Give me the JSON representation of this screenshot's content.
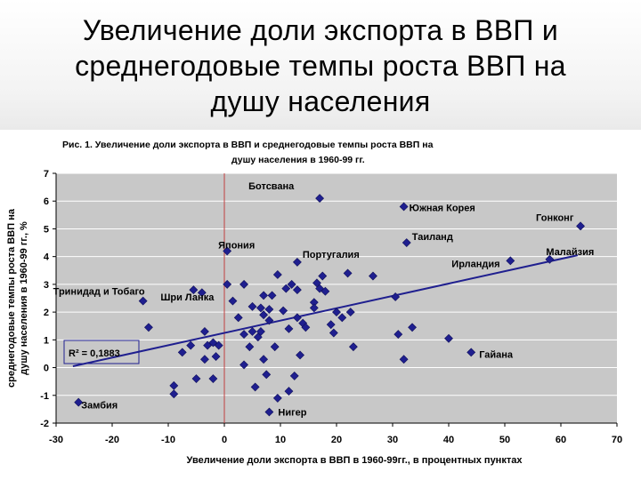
{
  "slide": {
    "title_line1": "Увеличение доли экспорта в ВВП и",
    "title_line2": "среднегодовые темпы роста ВВП на",
    "title_line3": "душу населения"
  },
  "colors": {
    "marker": "#1f1f8f",
    "trend": "#1f1f8f",
    "plot_bg": "#c8c8c8",
    "grid": "#ffffff",
    "zero_line": "#c04040"
  },
  "chart_data": {
    "type": "scatter",
    "figure_caption_line1": "Рис. 1. Увеличение  доли экспорта в ВВП и среднегодовые темпы роста ВВП на",
    "figure_caption_line2": "душу населения в 1960-99 гг.",
    "xlabel": "Увеличение  доли экспорта в ВВП в 1960-99гг., в процентных пунктах",
    "ylabel_line1": "среднегодовые темпы роста ВВП на",
    "ylabel_line2": "душу населения в 1960-99 гг., %",
    "xlim": [
      -30,
      70
    ],
    "ylim": [
      -2,
      7
    ],
    "x_ticks": [
      "-30",
      "-20",
      "-10",
      "0",
      "10",
      "20",
      "30",
      "40",
      "50",
      "60",
      "70"
    ],
    "y_ticks": [
      "-2",
      "-1",
      "0",
      "1",
      "2",
      "3",
      "4",
      "5",
      "6",
      "7"
    ],
    "grid": true,
    "r2_label": "R² = 0,1883",
    "trendline": {
      "x": [
        -27,
        63
      ],
      "y": [
        0.05,
        4.05
      ]
    },
    "labeled_points": [
      {
        "name": "Ботсвана",
        "x": 17,
        "y": 6.1
      },
      {
        "name": "Южная Корея",
        "x": 32,
        "y": 5.8
      },
      {
        "name": "Гонконг",
        "x": 63.5,
        "y": 5.1
      },
      {
        "name": "Таиланд",
        "x": 32.5,
        "y": 4.5
      },
      {
        "name": "Япония",
        "x": 0.5,
        "y": 4.2
      },
      {
        "name": "Португалия",
        "x": 13,
        "y": 3.8
      },
      {
        "name": "Малайзия",
        "x": 58,
        "y": 3.9
      },
      {
        "name": "Ирландия",
        "x": 51,
        "y": 3.85
      },
      {
        "name": "Тринидад и Тобаго",
        "x": -14.5,
        "y": 2.4
      },
      {
        "name": "Шри Ланка",
        "x": -5.5,
        "y": 2.8
      },
      {
        "name": "Гайана",
        "x": 44,
        "y": 0.55
      },
      {
        "name": "Замбия",
        "x": -26,
        "y": -1.25
      },
      {
        "name": "Нигер",
        "x": 8,
        "y": -1.6
      }
    ],
    "points": [
      {
        "x": -13.5,
        "y": 1.45
      },
      {
        "x": -7.5,
        "y": 0.55
      },
      {
        "x": -6,
        "y": 0.8
      },
      {
        "x": -5,
        "y": -0.4
      },
      {
        "x": -4,
        "y": 2.7
      },
      {
        "x": -3.5,
        "y": 1.3
      },
      {
        "x": -3.5,
        "y": 0.3
      },
      {
        "x": -3,
        "y": 0.8
      },
      {
        "x": -2,
        "y": -0.4
      },
      {
        "x": -2,
        "y": 0.9
      },
      {
        "x": -1.5,
        "y": 0.4
      },
      {
        "x": -1,
        "y": 0.8
      },
      {
        "x": -9,
        "y": -0.65
      },
      {
        "x": -9,
        "y": -0.95
      },
      {
        "x": 0.5,
        "y": 3.0
      },
      {
        "x": 1.5,
        "y": 2.4
      },
      {
        "x": 2.5,
        "y": 1.8
      },
      {
        "x": 3.5,
        "y": 1.2
      },
      {
        "x": 3.5,
        "y": 3.0
      },
      {
        "x": 3.5,
        "y": 0.1
      },
      {
        "x": 4.5,
        "y": 0.75
      },
      {
        "x": 5,
        "y": 2.2
      },
      {
        "x": 5,
        "y": 1.3
      },
      {
        "x": 5.5,
        "y": -0.7
      },
      {
        "x": 6,
        "y": 1.1
      },
      {
        "x": 6.5,
        "y": 2.15
      },
      {
        "x": 6.5,
        "y": 1.3
      },
      {
        "x": 7,
        "y": 2.6
      },
      {
        "x": 7,
        "y": 1.9
      },
      {
        "x": 7,
        "y": 0.3
      },
      {
        "x": 7.5,
        "y": -0.25
      },
      {
        "x": 8,
        "y": 2.1
      },
      {
        "x": 8,
        "y": 1.7
      },
      {
        "x": 8.5,
        "y": 2.6
      },
      {
        "x": 9,
        "y": 0.75
      },
      {
        "x": 9.5,
        "y": 3.35
      },
      {
        "x": 9.5,
        "y": -1.1
      },
      {
        "x": 10.5,
        "y": 2.05
      },
      {
        "x": 11,
        "y": 2.85
      },
      {
        "x": 11.5,
        "y": -0.85
      },
      {
        "x": 11.5,
        "y": 1.4
      },
      {
        "x": 12,
        "y": 3.0
      },
      {
        "x": 12.5,
        "y": -0.3
      },
      {
        "x": 13,
        "y": 1.8
      },
      {
        "x": 13,
        "y": 2.8
      },
      {
        "x": 13.5,
        "y": 0.45
      },
      {
        "x": 14,
        "y": 1.6
      },
      {
        "x": 14.5,
        "y": 1.45
      },
      {
        "x": 16,
        "y": 2.35
      },
      {
        "x": 16,
        "y": 2.15
      },
      {
        "x": 16.5,
        "y": 3.05
      },
      {
        "x": 17,
        "y": 2.85
      },
      {
        "x": 17.5,
        "y": 3.3
      },
      {
        "x": 18,
        "y": 2.75
      },
      {
        "x": 19,
        "y": 1.55
      },
      {
        "x": 19.5,
        "y": 1.25
      },
      {
        "x": 20,
        "y": 2.0
      },
      {
        "x": 21,
        "y": 1.8
      },
      {
        "x": 22,
        "y": 3.4
      },
      {
        "x": 22.5,
        "y": 2.0
      },
      {
        "x": 23,
        "y": 0.75
      },
      {
        "x": 26.5,
        "y": 3.3
      },
      {
        "x": 30.5,
        "y": 2.55
      },
      {
        "x": 31,
        "y": 1.2
      },
      {
        "x": 32,
        "y": 0.3
      },
      {
        "x": 33.5,
        "y": 1.45
      },
      {
        "x": 40,
        "y": 1.05
      }
    ]
  }
}
